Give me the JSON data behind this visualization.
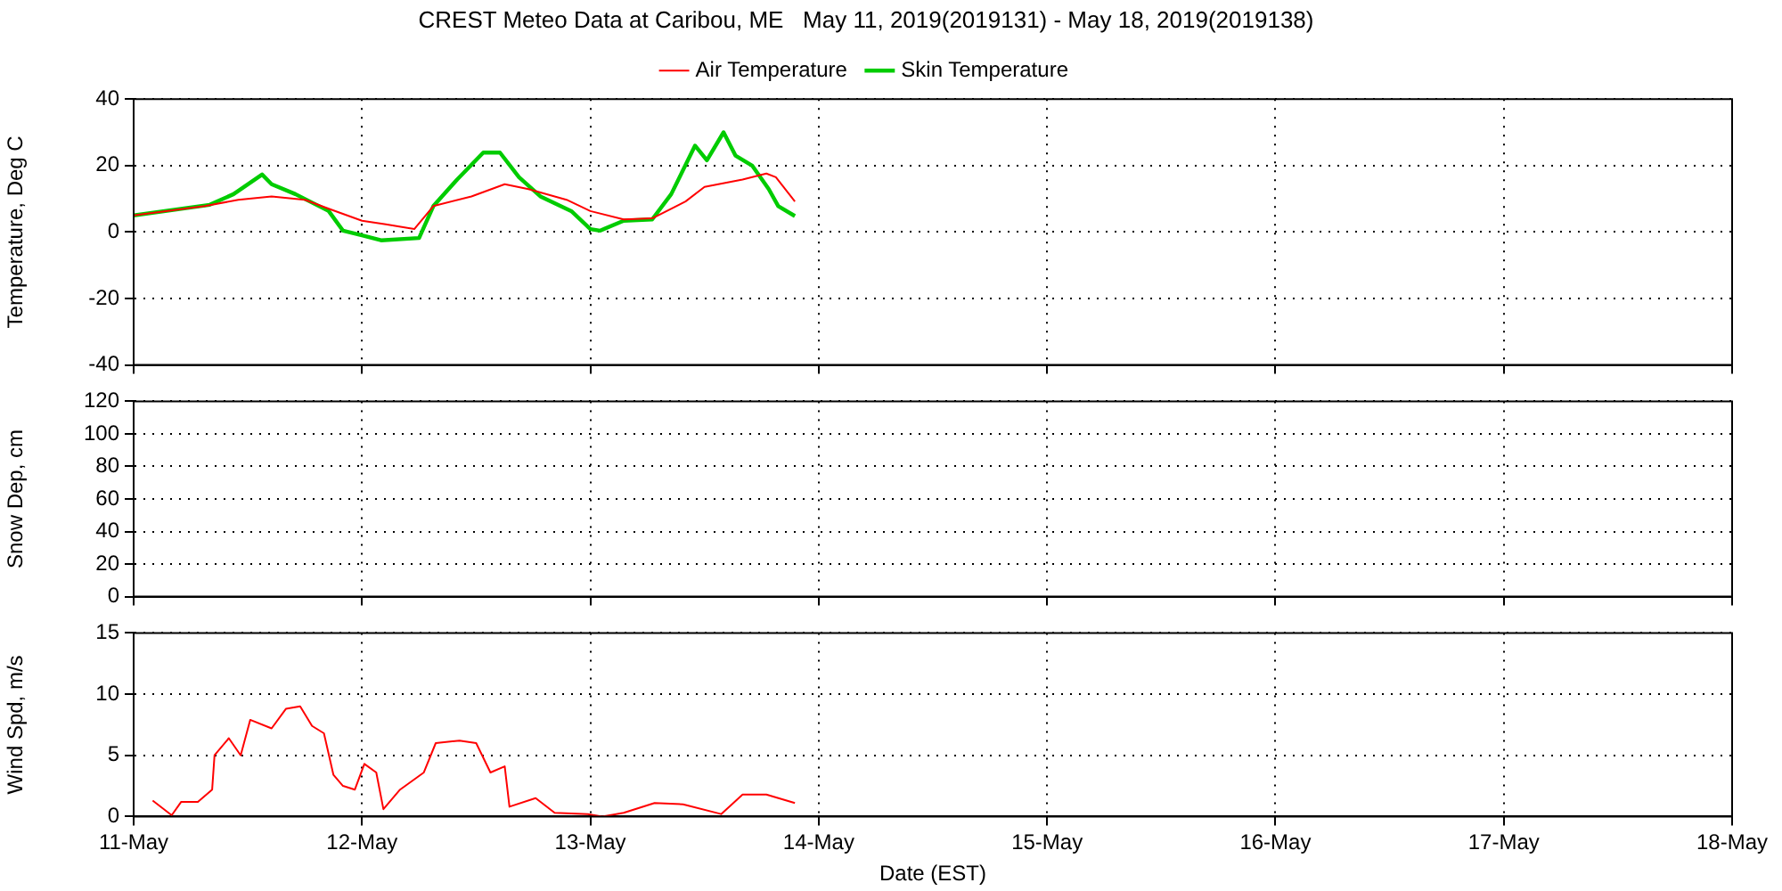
{
  "chart_data": [
    {
      "type": "line",
      "title": "CREST Meteo Data at Caribou, ME   May 11, 2019(2019131) - May 18, 2019(2019138)",
      "ylabel": "Temperature, Deg C",
      "xlim": [
        "2019-05-11",
        "2019-05-18"
      ],
      "xticks": [
        {
          "value": "2019-05-11",
          "label": null
        },
        {
          "value": "2019-05-12",
          "label": null
        },
        {
          "value": "2019-05-13",
          "label": null
        },
        {
          "value": "2019-05-14",
          "label": null
        },
        {
          "value": "2019-05-15",
          "label": null
        },
        {
          "value": "2019-05-16",
          "label": null
        },
        {
          "value": "2019-05-17",
          "label": null
        },
        {
          "value": "2019-05-18",
          "label": null
        }
      ],
      "ylim": [
        -40,
        40
      ],
      "yticks": [
        -40,
        -20,
        0,
        20,
        40
      ],
      "grid": true,
      "legend": "top",
      "tick_labels": "y",
      "series": [
        {
          "name": "Air Temperature",
          "color": "#ff0000",
          "x": [
            "2019-05-11T00:00",
            "2019-05-11T07:30",
            "2019-05-11T11:00",
            "2019-05-11T14:30",
            "2019-05-11T18:00",
            "2019-05-11T20:30",
            "2019-05-12T00:00",
            "2019-05-12T02:30",
            "2019-05-12T05:30",
            "2019-05-12T07:30",
            "2019-05-12T11:30",
            "2019-05-12T15:00",
            "2019-05-12T17:30",
            "2019-05-12T21:30",
            "2019-05-13T00:00",
            "2019-05-13T03:30",
            "2019-05-13T06:30",
            "2019-05-13T10:00",
            "2019-05-13T12:00",
            "2019-05-13T16:00",
            "2019-05-13T18:30",
            "2019-05-13T19:30",
            "2019-05-13T21:30"
          ],
          "values": [
            5,
            7.8,
            9.7,
            10.7,
            9.7,
            7,
            3.4,
            2.3,
            0.9,
            7.8,
            10.7,
            14.4,
            12.9,
            9.7,
            6.3,
            3.8,
            4.1,
            9.2,
            13.6,
            15.8,
            17.6,
            16.5,
            9.2
          ]
        },
        {
          "name": "Skin Temperature",
          "color": "#00cc00",
          "x": [
            "2019-05-11T00:00",
            "2019-05-11T08:00",
            "2019-05-11T10:30",
            "2019-05-11T13:30",
            "2019-05-11T14:30",
            "2019-05-11T17:00",
            "2019-05-11T20:30",
            "2019-05-11T22:00",
            "2019-05-12T00:00",
            "2019-05-12T02:00",
            "2019-05-12T06:00",
            "2019-05-12T07:30",
            "2019-05-12T10:00",
            "2019-05-12T12:45",
            "2019-05-12T14:30",
            "2019-05-12T16:30",
            "2019-05-12T18:45",
            "2019-05-12T22:00",
            "2019-05-13T00:00",
            "2019-05-13T01:00",
            "2019-05-13T03:30",
            "2019-05-13T06:30",
            "2019-05-13T08:30",
            "2019-05-13T11:00",
            "2019-05-13T12:15",
            "2019-05-13T14:00",
            "2019-05-13T15:15",
            "2019-05-13T17:00",
            "2019-05-13T18:45",
            "2019-05-13T19:45",
            "2019-05-13T21:30"
          ],
          "values": [
            5,
            8.2,
            11.4,
            17.3,
            14.4,
            11.4,
            6.3,
            0.4,
            -1,
            -2.5,
            -1.8,
            7.8,
            15.8,
            23.9,
            23.9,
            16.5,
            10.7,
            6.3,
            0.9,
            0.4,
            3.4,
            3.8,
            11.4,
            26,
            21.6,
            30,
            23,
            20,
            12.9,
            7.8,
            4.8
          ]
        }
      ]
    },
    {
      "type": "line",
      "ylabel": "Snow Dep, cm",
      "xlim": [
        "2019-05-11",
        "2019-05-18"
      ],
      "xticks": [
        {
          "value": "2019-05-11",
          "label": null
        },
        {
          "value": "2019-05-12",
          "label": null
        },
        {
          "value": "2019-05-13",
          "label": null
        },
        {
          "value": "2019-05-14",
          "label": null
        },
        {
          "value": "2019-05-15",
          "label": null
        },
        {
          "value": "2019-05-16",
          "label": null
        },
        {
          "value": "2019-05-17",
          "label": null
        },
        {
          "value": "2019-05-18",
          "label": null
        }
      ],
      "ylim": [
        0,
        120
      ],
      "yticks": [
        0,
        20,
        40,
        60,
        80,
        100,
        120
      ],
      "grid": true,
      "tick_labels": "y"
    },
    {
      "type": "line",
      "xlabel": "Date (EST)",
      "ylabel": "Wind Spd, m/s",
      "xlim": [
        "2019-05-11",
        "2019-05-18"
      ],
      "xticks": [
        {
          "value": "2019-05-11",
          "label": "11-May"
        },
        {
          "value": "2019-05-12",
          "label": "12-May"
        },
        {
          "value": "2019-05-13",
          "label": "13-May"
        },
        {
          "value": "2019-05-14",
          "label": "14-May"
        },
        {
          "value": "2019-05-15",
          "label": "15-May"
        },
        {
          "value": "2019-05-16",
          "label": "16-May"
        },
        {
          "value": "2019-05-17",
          "label": "17-May"
        },
        {
          "value": "2019-05-18",
          "label": "18-May"
        }
      ],
      "ylim": [
        0,
        15
      ],
      "yticks": [
        0,
        5,
        10,
        15
      ],
      "grid": true,
      "series": [
        {
          "color": "#ff0000",
          "x": [
            "2019-05-11T02:00",
            "2019-05-11T04:00",
            "2019-05-11T05:00",
            "2019-05-11T06:45",
            "2019-05-11T08:15",
            "2019-05-11T08:30",
            "2019-05-11T10:00",
            "2019-05-11T11:15",
            "2019-05-11T12:15",
            "2019-05-11T14:30",
            "2019-05-11T16:00",
            "2019-05-11T17:30",
            "2019-05-11T18:45",
            "2019-05-11T20:00",
            "2019-05-11T21:00",
            "2019-05-11T22:00",
            "2019-05-11T23:15",
            "2019-05-12T00:15",
            "2019-05-12T01:30",
            "2019-05-12T02:15",
            "2019-05-12T04:00",
            "2019-05-12T06:30",
            "2019-05-12T07:45",
            "2019-05-12T10:15",
            "2019-05-12T12:00",
            "2019-05-12T13:30",
            "2019-05-12T15:00",
            "2019-05-12T15:30",
            "2019-05-12T18:15",
            "2019-05-12T20:15",
            "2019-05-12T23:45",
            "2019-05-13T01:15",
            "2019-05-13T03:30",
            "2019-05-13T06:45",
            "2019-05-13T09:45",
            "2019-05-13T13:45",
            "2019-05-13T16:00",
            "2019-05-13T18:30",
            "2019-05-13T21:30"
          ],
          "values": [
            1.3,
            0.1,
            1.2,
            1.2,
            2.2,
            5,
            6.4,
            5,
            7.9,
            7.2,
            8.8,
            9,
            7.4,
            6.8,
            3.4,
            2.5,
            2.2,
            4.3,
            3.6,
            0.6,
            2.2,
            3.6,
            6,
            6.2,
            6,
            3.6,
            4.1,
            0.8,
            1.5,
            0.3,
            0.2,
            0,
            0.3,
            1.1,
            1,
            0.2,
            1.8,
            1.8,
            1.1
          ]
        }
      ]
    }
  ]
}
